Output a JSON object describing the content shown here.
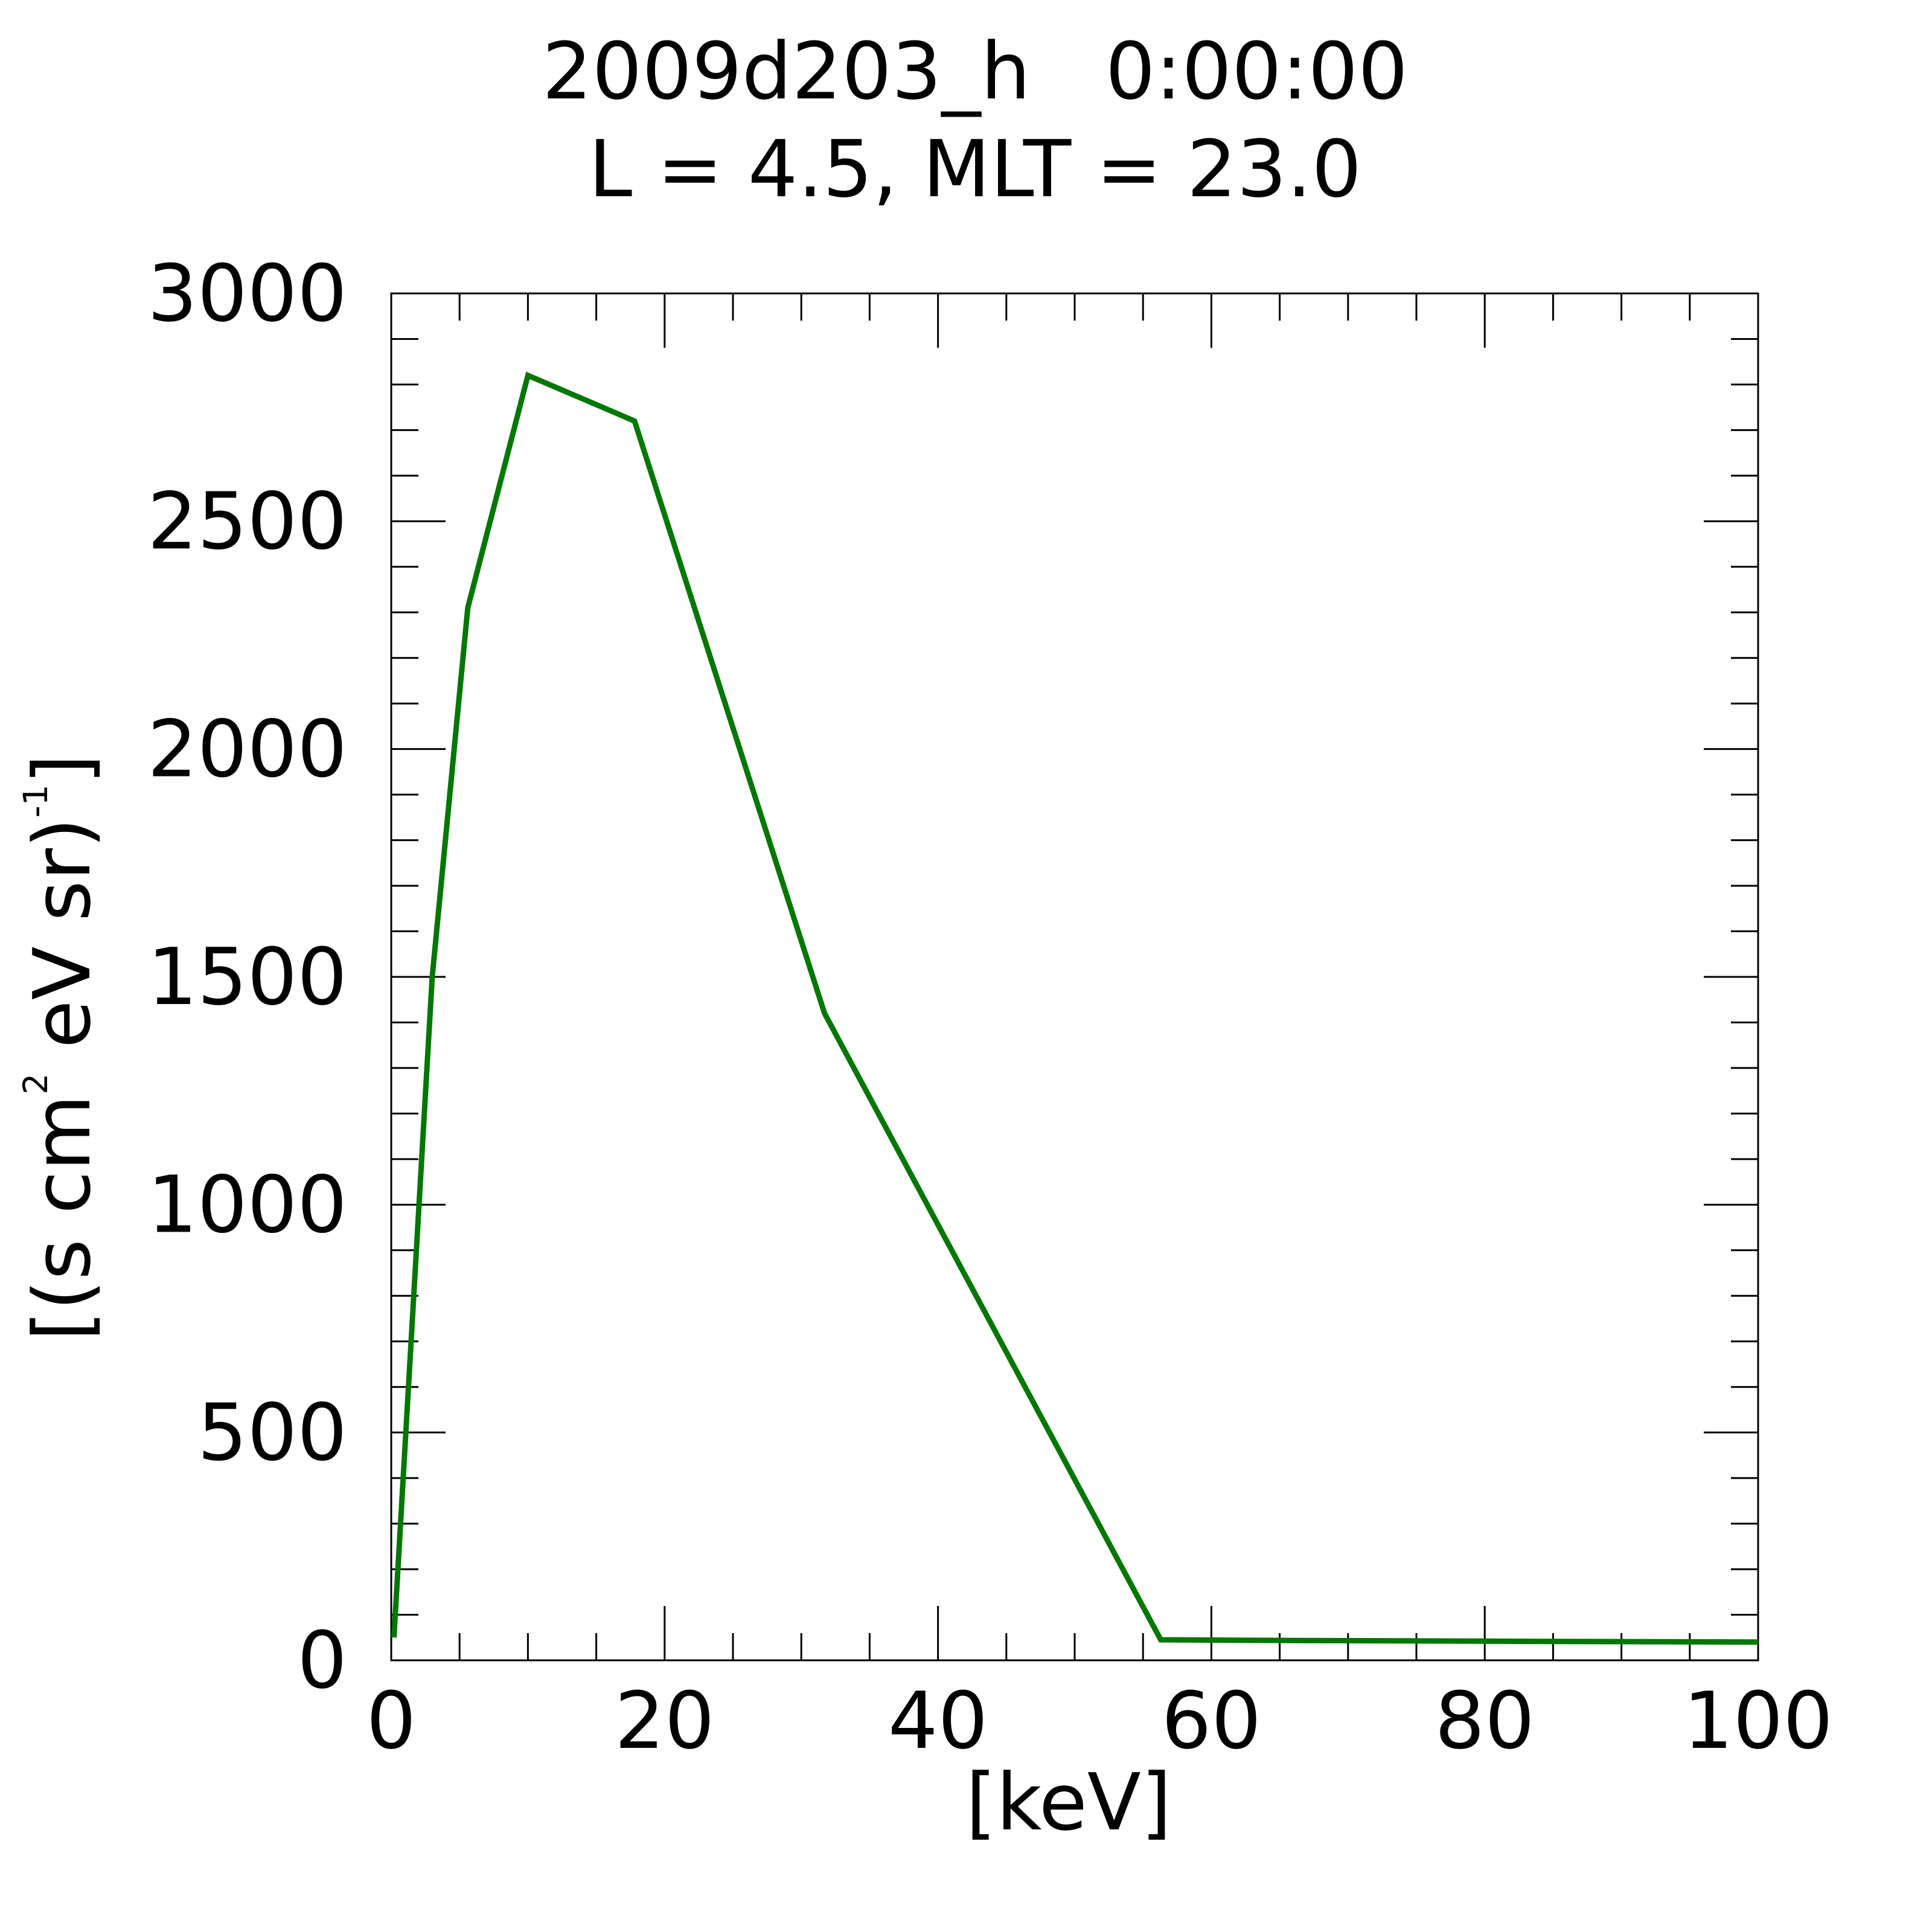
{
  "chart_data": {
    "type": "line",
    "title": "2009d203_h   0:00:00",
    "subtitle": "L = 4.5, MLT = 23.0",
    "xlabel": "[keV]",
    "ylabel": {
      "pre": "[(s cm",
      "sup1": "2",
      "mid": " eV sr)",
      "sup2": "-1",
      "post": "]"
    },
    "xlim": [
      0,
      100
    ],
    "ylim": [
      0,
      3000
    ],
    "x_ticks": [
      "0",
      "20",
      "40",
      "60",
      "80",
      "100"
    ],
    "y_ticks": [
      "0",
      "500",
      "1000",
      "1500",
      "2000",
      "2500",
      "3000"
    ],
    "grid": false,
    "line_color": "#007700",
    "series": [
      {
        "x": [
          0.2,
          3.0,
          5.6,
          10.0,
          17.8,
          31.7,
          56.3,
          62.0,
          80.0,
          100.0
        ],
        "y": [
          50,
          1500,
          2310,
          2820,
          2720,
          1420,
          45,
          44,
          42,
          40
        ]
      }
    ]
  }
}
